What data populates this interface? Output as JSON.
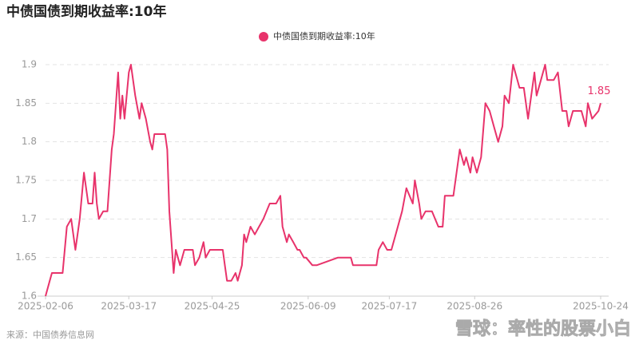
{
  "chart_data": {
    "type": "line",
    "title": "中债国债到期收益率:10年",
    "source": "来源：中国债券信息网",
    "watermark": "雪球：率性的股票小白",
    "x": [
      "2025-02-06",
      "2025-02-08",
      "2025-02-09",
      "2025-02-14",
      "2025-02-16",
      "2025-02-18",
      "2025-02-20",
      "2025-02-22",
      "2025-02-24",
      "2025-02-26",
      "2025-02-28",
      "2025-03-01",
      "2025-03-02",
      "2025-03-03",
      "2025-03-05",
      "2025-03-07",
      "2025-03-09",
      "2025-03-10",
      "2025-03-12",
      "2025-03-13",
      "2025-03-14",
      "2025-03-15",
      "2025-03-17",
      "2025-03-18",
      "2025-03-20",
      "2025-03-22",
      "2025-03-23",
      "2025-03-25",
      "2025-03-27",
      "2025-03-28",
      "2025-03-29",
      "2025-04-03",
      "2025-04-04",
      "2025-04-05",
      "2025-04-07",
      "2025-04-08",
      "2025-04-10",
      "2025-04-12",
      "2025-04-16",
      "2025-04-17",
      "2025-04-19",
      "2025-04-21",
      "2025-04-22",
      "2025-04-24",
      "2025-04-30",
      "2025-05-01",
      "2025-05-02",
      "2025-05-04",
      "2025-05-06",
      "2025-05-07",
      "2025-05-09",
      "2025-05-10",
      "2025-05-11",
      "2025-05-13",
      "2025-05-15",
      "2025-05-17",
      "2025-05-19",
      "2025-05-22",
      "2025-05-25",
      "2025-05-27",
      "2025-05-28",
      "2025-05-30",
      "2025-05-31",
      "2025-06-02",
      "2025-06-04",
      "2025-06-05",
      "2025-06-07",
      "2025-06-08",
      "2025-06-11",
      "2025-06-13",
      "2025-06-23",
      "2025-06-29",
      "2025-06-30",
      "2025-07-11",
      "2025-07-12",
      "2025-07-14",
      "2025-07-16",
      "2025-07-18",
      "2025-07-20",
      "2025-07-23",
      "2025-07-25",
      "2025-07-28",
      "2025-07-29",
      "2025-07-31",
      "2025-08-01",
      "2025-08-03",
      "2025-08-06",
      "2025-08-09",
      "2025-08-11",
      "2025-08-12",
      "2025-08-16",
      "2025-08-19",
      "2025-08-21",
      "2025-08-22",
      "2025-08-24",
      "2025-08-25",
      "2025-08-27",
      "2025-08-29",
      "2025-08-31",
      "2025-09-02",
      "2025-09-04",
      "2025-09-06",
      "2025-09-08",
      "2025-09-09",
      "2025-09-11",
      "2025-09-13",
      "2025-09-16",
      "2025-09-18",
      "2025-09-20",
      "2025-09-23",
      "2025-09-24",
      "2025-09-26",
      "2025-09-28",
      "2025-09-29",
      "2025-10-02",
      "2025-10-04",
      "2025-10-06",
      "2025-10-08",
      "2025-10-09",
      "2025-10-11",
      "2025-10-15",
      "2025-10-17",
      "2025-10-18",
      "2025-10-20",
      "2025-10-23",
      "2025-10-24"
    ],
    "series": [
      {
        "name": "中债国债到期收益率:10年",
        "color": "#e8336b",
        "values": [
          1.6,
          1.62,
          1.63,
          1.63,
          1.69,
          1.7,
          1.66,
          1.7,
          1.76,
          1.72,
          1.72,
          1.76,
          1.72,
          1.7,
          1.71,
          1.71,
          1.79,
          1.81,
          1.89,
          1.83,
          1.86,
          1.83,
          1.89,
          1.9,
          1.86,
          1.83,
          1.85,
          1.83,
          1.8,
          1.79,
          1.81,
          1.81,
          1.79,
          1.71,
          1.63,
          1.66,
          1.64,
          1.66,
          1.66,
          1.64,
          1.65,
          1.67,
          1.65,
          1.66,
          1.66,
          1.64,
          1.62,
          1.62,
          1.63,
          1.62,
          1.64,
          1.68,
          1.67,
          1.69,
          1.68,
          1.69,
          1.7,
          1.72,
          1.72,
          1.73,
          1.69,
          1.67,
          1.68,
          1.67,
          1.66,
          1.66,
          1.65,
          1.65,
          1.64,
          1.64,
          1.65,
          1.65,
          1.64,
          1.64,
          1.66,
          1.67,
          1.66,
          1.66,
          1.68,
          1.71,
          1.74,
          1.72,
          1.75,
          1.72,
          1.7,
          1.71,
          1.71,
          1.69,
          1.69,
          1.73,
          1.73,
          1.79,
          1.77,
          1.78,
          1.76,
          1.78,
          1.76,
          1.78,
          1.85,
          1.84,
          1.82,
          1.8,
          1.82,
          1.86,
          1.85,
          1.9,
          1.87,
          1.87,
          1.83,
          1.89,
          1.86,
          1.88,
          1.9,
          1.88,
          1.88,
          1.89,
          1.84,
          1.84,
          1.82,
          1.84,
          1.84,
          1.82,
          1.85,
          1.83,
          1.84,
          1.85
        ]
      }
    ],
    "xlim": [
      "2025-02-06",
      "2025-10-24"
    ],
    "xticks": [
      "2025-02-06",
      "2025-03-17",
      "2025-04-25",
      "2025-06-09",
      "2025-07-17",
      "2025-08-26",
      "2025-10-24"
    ],
    "ylim": [
      1.6,
      1.9
    ],
    "yticks": [
      1.6,
      1.65,
      1.7,
      1.75,
      1.8,
      1.85,
      1.9
    ],
    "grid": true,
    "legend": "top"
  }
}
